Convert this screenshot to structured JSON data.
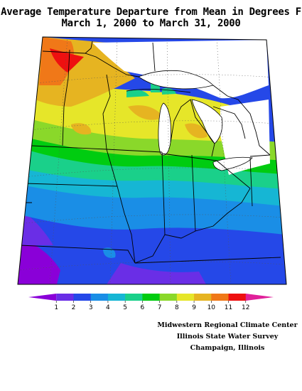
{
  "title": {
    "line1": "Average Temperature Departure from Mean in Degrees F",
    "line2": "March 1, 2000 to March 31, 2000"
  },
  "legend": {
    "labels": [
      "1",
      "2",
      "3",
      "4",
      "5",
      "6",
      "7",
      "8",
      "9",
      "10",
      "11",
      "12"
    ],
    "colors": [
      "#8a00d8",
      "#6a2ee6",
      "#2548e8",
      "#1a8ee6",
      "#16b6d4",
      "#1ad08a",
      "#00cc10",
      "#8ad82a",
      "#e6e629",
      "#e6b421",
      "#f07818",
      "#ee1010",
      "#e0209a"
    ]
  },
  "credits": {
    "line1": "Midwestern Regional Climate Center",
    "line2": "Illinois State Water Survey",
    "line3": "Champaign, Illinois"
  }
}
